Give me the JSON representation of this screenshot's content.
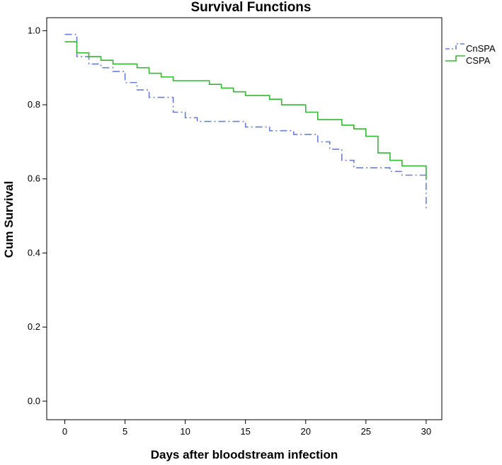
{
  "chart_data": {
    "type": "line",
    "subtype": "step",
    "title": "Survival Functions",
    "xlabel": "Days after bloodstream infection",
    "ylabel": "Cum Survival",
    "xlim": [
      -1.5,
      31.3
    ],
    "ylim": [
      -0.05,
      1.035
    ],
    "xticks": [
      0,
      5,
      10,
      15,
      20,
      25,
      30
    ],
    "xtick_labels": [
      "0",
      "5",
      "10",
      "15",
      "20",
      "25",
      "30"
    ],
    "yticks": [
      0.0,
      0.2,
      0.4,
      0.6,
      0.8,
      1.0
    ],
    "ytick_labels": [
      "0.0",
      "0.2",
      "0.4",
      "0.6",
      "0.8",
      "1.0"
    ],
    "grid": false,
    "legend_position": "top-right",
    "series": [
      {
        "name": "CnSPA",
        "color": "#6a7fd4",
        "dash": "dash-dot",
        "x": [
          0,
          1,
          2,
          3,
          4,
          5,
          6,
          7,
          9,
          10,
          11,
          15,
          17,
          19,
          21,
          22,
          23,
          24,
          27,
          28,
          30,
          30
        ],
        "y": [
          0.99,
          0.93,
          0.91,
          0.9,
          0.89,
          0.86,
          0.84,
          0.82,
          0.78,
          0.765,
          0.755,
          0.74,
          0.73,
          0.72,
          0.7,
          0.68,
          0.65,
          0.63,
          0.62,
          0.61,
          0.6,
          0.52
        ]
      },
      {
        "name": "CSPA",
        "color": "#33b833",
        "dash": "solid",
        "x": [
          0,
          1,
          2,
          3,
          4,
          6,
          7,
          8,
          9,
          12,
          13,
          14,
          15,
          17,
          18,
          20,
          21,
          23,
          24,
          25,
          26,
          27,
          28,
          30
        ],
        "y": [
          0.97,
          0.94,
          0.93,
          0.92,
          0.91,
          0.9,
          0.885,
          0.875,
          0.865,
          0.855,
          0.845,
          0.835,
          0.825,
          0.815,
          0.8,
          0.78,
          0.76,
          0.745,
          0.735,
          0.715,
          0.67,
          0.65,
          0.635,
          0.6
        ]
      }
    ]
  }
}
